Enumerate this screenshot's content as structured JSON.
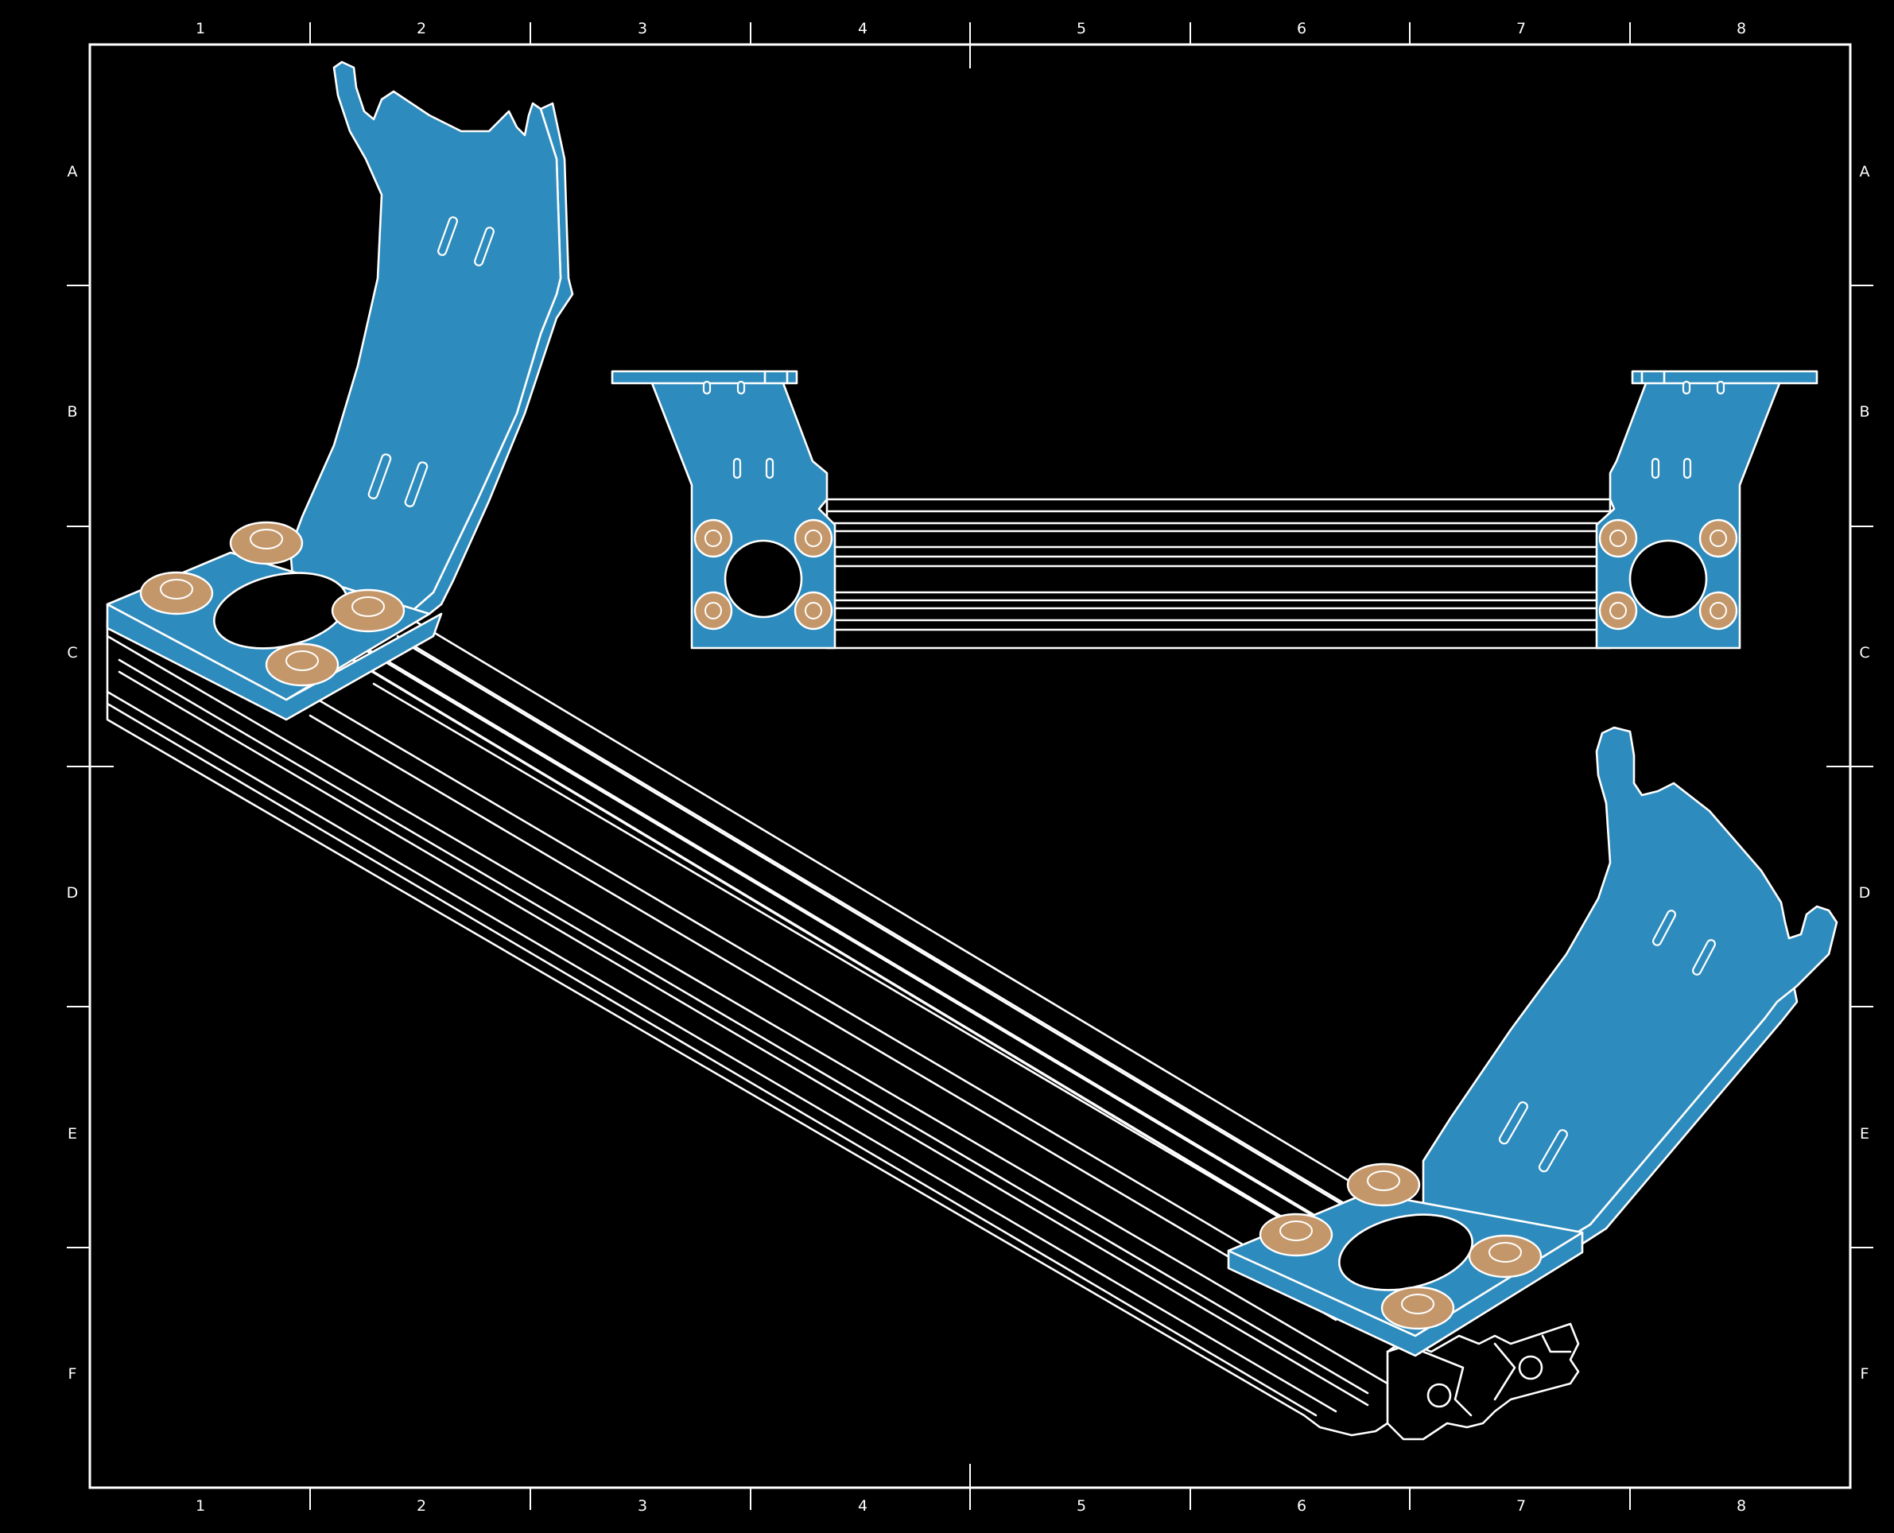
{
  "drawing": {
    "frame_columns": [
      "1",
      "2",
      "3",
      "4",
      "5",
      "6",
      "7",
      "8"
    ],
    "frame_rows": [
      "A",
      "B",
      "C",
      "D",
      "E",
      "F"
    ],
    "colors": {
      "background": "#000000",
      "linework": "#ffffff",
      "bracket": "#2e8bbd",
      "bolt": "#c4976a"
    }
  }
}
